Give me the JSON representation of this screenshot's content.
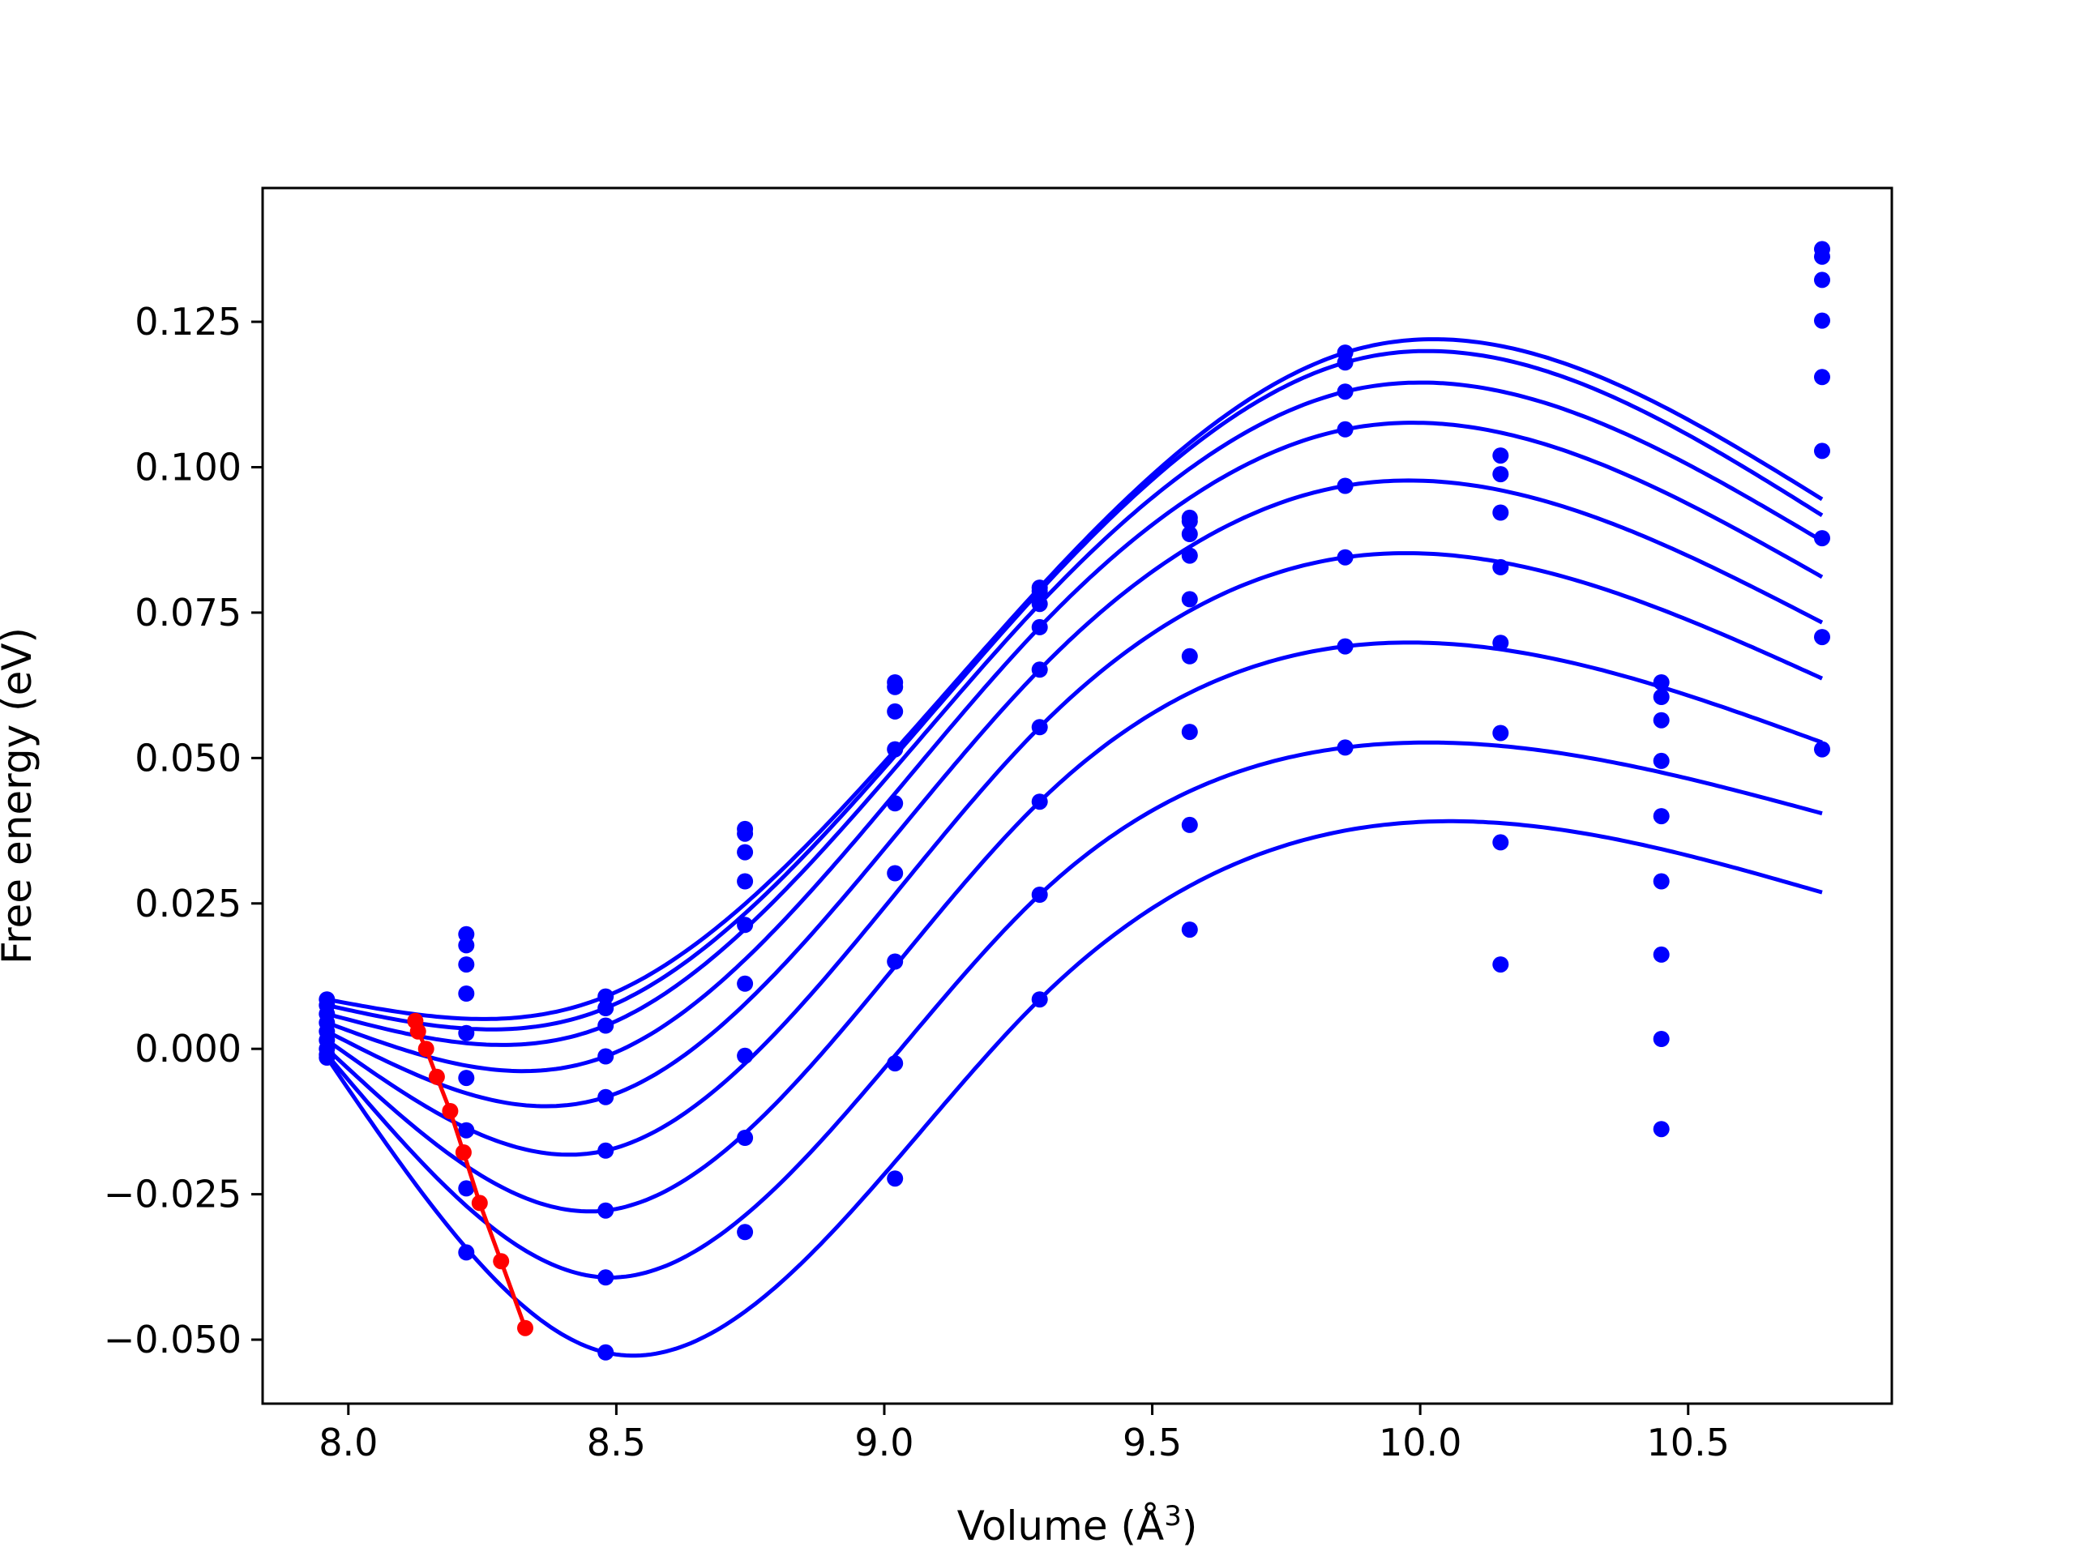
{
  "chart_data": {
    "type": "scatter",
    "title": "",
    "xlabel": "Volume (Å",
    "xlabel_superscript": "3",
    "xlabel_suffix": ")",
    "ylabel": "Free energy (eV)",
    "xlim": [
      7.84,
      10.88
    ],
    "ylim": [
      -0.061,
      0.148
    ],
    "x_ticks": [
      8.0,
      8.5,
      9.0,
      9.5,
      10.0,
      10.5
    ],
    "x_tick_labels": [
      "8.0",
      "8.5",
      "9.0",
      "9.5",
      "10.0",
      "10.5"
    ],
    "y_ticks": [
      -0.05,
      -0.025,
      0.0,
      0.025,
      0.05,
      0.075,
      0.1,
      0.125
    ],
    "y_tick_labels": [
      "−0.050",
      "−0.025",
      "0.000",
      "0.025",
      "0.050",
      "0.075",
      "0.100",
      "0.125"
    ],
    "grid": false,
    "legend": "none",
    "colors": {
      "points": "#0000ff",
      "fits": "#0000ff",
      "minimum_path": "#ff0000",
      "axes": "#000000"
    },
    "scatter_volumes": [
      7.96,
      8.22,
      8.48,
      8.74,
      9.02,
      9.29,
      9.57,
      9.86,
      10.15,
      10.45,
      10.75
    ],
    "fit_series": [
      {
        "y": [
          0.0085,
          0.0197,
          0.009,
          0.0378,
          0.063,
          0.0793,
          0.0913,
          0.1197,
          0.102,
          0.063,
          0.1375
        ]
      },
      {
        "y": [
          0.0075,
          0.0178,
          0.007,
          0.037,
          0.0622,
          0.0787,
          0.0907,
          0.118,
          0.0988,
          0.0605,
          0.1362
        ]
      },
      {
        "y": [
          0.006,
          0.0145,
          0.004,
          0.0338,
          0.058,
          0.0765,
          0.0885,
          0.113,
          0.0922,
          0.0565,
          0.1322
        ]
      },
      {
        "y": [
          0.0045,
          0.0095,
          -0.0013,
          0.0288,
          0.0515,
          0.0725,
          0.0848,
          0.1065,
          0.0828,
          0.0495,
          0.1252
        ]
      },
      {
        "y": [
          0.003,
          0.0027,
          -0.0083,
          0.0213,
          0.0422,
          0.0652,
          0.0773,
          0.0968,
          0.0698,
          0.04,
          0.1155
        ]
      },
      {
        "y": [
          0.0015,
          -0.005,
          -0.0175,
          0.0112,
          0.0302,
          0.0553,
          0.0675,
          0.0845,
          0.0543,
          0.0288,
          0.1028
        ]
      },
      {
        "y": [
          0.0,
          -0.014,
          -0.0278,
          -0.0012,
          0.015,
          0.0425,
          0.0545,
          0.0692,
          0.0355,
          0.0162,
          0.0878
        ]
      },
      {
        "y": [
          -0.001,
          -0.024,
          -0.0393,
          -0.0153,
          -0.0025,
          0.0265,
          0.0385,
          0.0518,
          0.0145,
          0.0017,
          0.0708
        ]
      },
      {
        "y": [
          -0.0015,
          -0.035,
          -0.0522,
          -0.0315,
          -0.0223,
          0.0085,
          0.0205,
          null,
          null,
          -0.0138,
          0.0515
        ]
      }
    ],
    "minimum_path": {
      "x": [
        8.125,
        8.13,
        8.145,
        8.165,
        8.19,
        8.215,
        8.245,
        8.285,
        8.33
      ],
      "y": [
        0.0048,
        0.003,
        0.0,
        -0.0048,
        -0.0107,
        -0.0178,
        -0.0265,
        -0.0365,
        -0.048
      ]
    }
  }
}
